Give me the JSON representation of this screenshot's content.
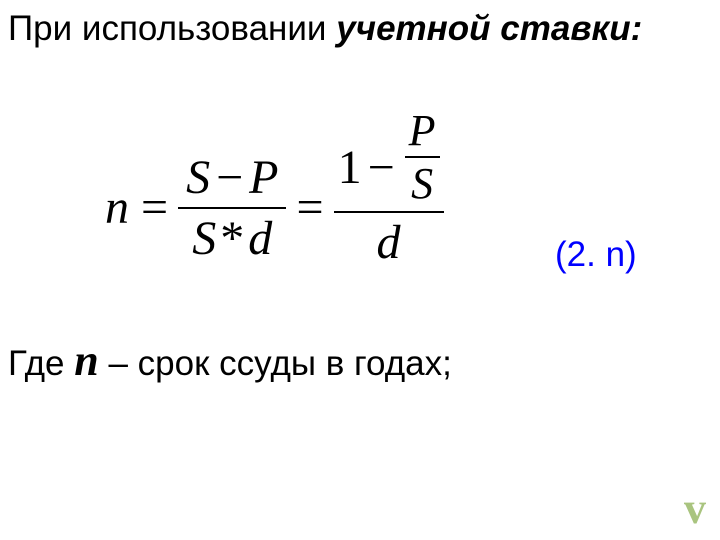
{
  "heading": {
    "part1": "При использовании ",
    "part2": "учетной ставки:",
    "font_size": 35,
    "color_normal": "#000000"
  },
  "formula": {
    "lhs": "n",
    "equals": "=",
    "frac1_num_a": "S",
    "frac1_num_op": "−",
    "frac1_num_b": "P",
    "frac1_den_a": "S",
    "frac1_den_op": "*",
    "frac1_den_b": "d",
    "frac2_one": "1",
    "frac2_minus": "−",
    "frac2_inner_num": "P",
    "frac2_inner_den": "S",
    "frac2_den": "d",
    "font_family": "Times New Roman",
    "font_size": 48,
    "color": "#000000"
  },
  "ref": {
    "text": "(2. n)",
    "color": "#0000ff",
    "font_size": 35
  },
  "where": {
    "prefix": "Где ",
    "var": "n",
    "suffix": " – срок ссуды в годах;",
    "font_size": 35,
    "var_font_size": 44
  },
  "nav": {
    "symbol": "v",
    "color": "#a9c47f",
    "font_size": 44
  }
}
